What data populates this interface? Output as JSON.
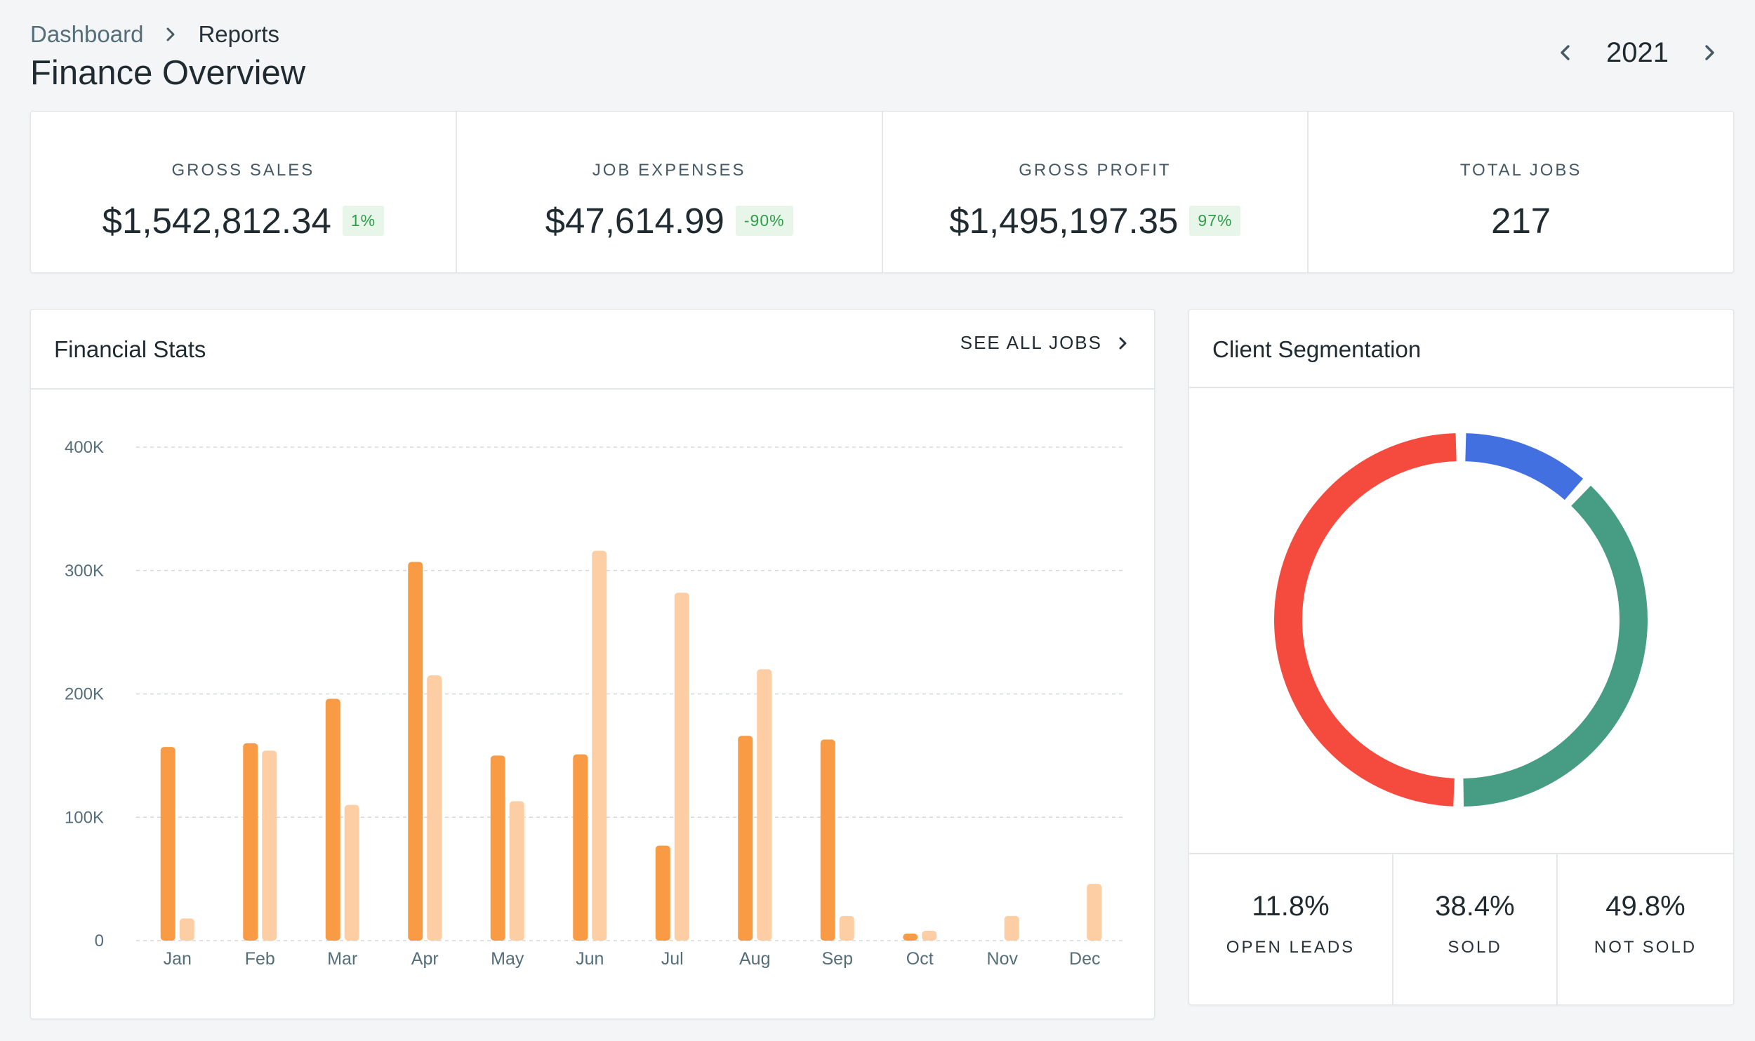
{
  "breadcrumb": {
    "parent": "Dashboard",
    "current": "Reports"
  },
  "page_title": "Finance Overview",
  "year_nav": {
    "year": "2021",
    "prev_icon": "chevron-left-icon",
    "next_icon": "chevron-right-icon"
  },
  "kpis": [
    {
      "label": "GROSS SALES",
      "value": "$1,542,812.34",
      "badge": "1%"
    },
    {
      "label": "JOB EXPENSES",
      "value": "$47,614.99",
      "badge": "-90%"
    },
    {
      "label": "GROSS PROFIT",
      "value": "$1,495,197.35",
      "badge": "97%"
    },
    {
      "label": "TOTAL JOBS",
      "value": "217",
      "badge": ""
    }
  ],
  "financial_stats": {
    "title": "Financial Stats",
    "link_label": "SEE ALL JOBS"
  },
  "client_segmentation": {
    "title": "Client Segmentation",
    "stats": [
      {
        "value": "11.8%",
        "label": "OPEN LEADS"
      },
      {
        "value": "38.4%",
        "label": "SOLD"
      },
      {
        "value": "49.8%",
        "label": "NOT SOLD"
      }
    ]
  },
  "colors": {
    "bar_primary": "#f99b45",
    "bar_secondary": "#fdcda3",
    "badge_bg": "#e8f6ea",
    "badge_text": "#2e9e4a",
    "open_leads": "#4270e0",
    "sold": "#479d84",
    "not_sold": "#f44b3e"
  },
  "chart_data": [
    {
      "type": "bar",
      "categories": [
        "Jan",
        "Feb",
        "Mar",
        "Apr",
        "May",
        "Jun",
        "Jul",
        "Aug",
        "Sep",
        "Oct",
        "Nov",
        "Dec"
      ],
      "series": [
        {
          "values": [
            157000,
            160000,
            196000,
            307000,
            150000,
            151000,
            77000,
            166000,
            163000,
            5000,
            0,
            0
          ]
        },
        {
          "values": [
            18000,
            154000,
            110000,
            215000,
            113000,
            316000,
            282000,
            220000,
            20000,
            8000,
            20000,
            46000
          ]
        }
      ],
      "yticks": [
        "0",
        "100K",
        "200K",
        "300K",
        "400K"
      ],
      "ylim": [
        0,
        400000
      ],
      "grid": true
    },
    {
      "type": "pie",
      "variant": "donut",
      "labels": [
        "OPEN LEADS",
        "SOLD",
        "NOT SOLD"
      ],
      "values": [
        11.8,
        38.4,
        49.8
      ]
    }
  ]
}
